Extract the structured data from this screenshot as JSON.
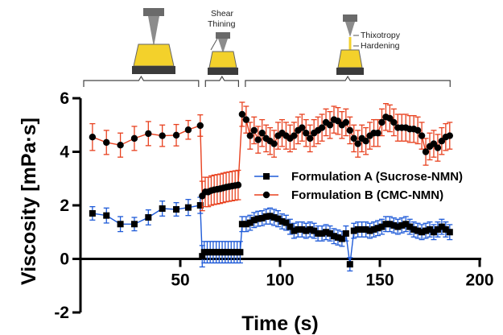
{
  "chart_data": {
    "type": "line",
    "xlabel": "Time (s)",
    "ylabel": "Viscosity [mPa·s]",
    "xlim": [
      0,
      200
    ],
    "ylim": [
      -2,
      6
    ],
    "x_ticks": [
      50,
      100,
      150,
      200
    ],
    "y_ticks": [
      -2,
      0,
      2,
      4,
      6
    ],
    "x_tick_labels": [
      "50",
      "100",
      "150",
      "200"
    ],
    "y_tick_labels": [
      "-2",
      "0",
      "2",
      "4",
      "6"
    ],
    "grid": false,
    "legend_position": "center-right",
    "phases": [
      {
        "label": "",
        "x_range": [
          0,
          60
        ]
      },
      {
        "label": "Shear Thining",
        "x_range": [
          61,
          80
        ]
      },
      {
        "label_lines": [
          "Thixotropy",
          "Hardening"
        ],
        "x_range": [
          81,
          186
        ]
      }
    ],
    "series": [
      {
        "name": "Formulation A (Sucrose-NMN)",
        "color": "#1f5bd8",
        "marker": "square",
        "points": [
          [
            6,
            1.7,
            0.25
          ],
          [
            13,
            1.62,
            0.28
          ],
          [
            20,
            1.3,
            0.28
          ],
          [
            27,
            1.3,
            0.25
          ],
          [
            34,
            1.55,
            0.28
          ],
          [
            41,
            1.88,
            0.28
          ],
          [
            48,
            1.85,
            0.25
          ],
          [
            54,
            1.92,
            0.3
          ],
          [
            60,
            2.0,
            0.3
          ],
          [
            61,
            0.1,
            0.4
          ],
          [
            62,
            0.25,
            0.4
          ],
          [
            63.5,
            0.25,
            0.4
          ],
          [
            65,
            0.25,
            0.4
          ],
          [
            66.5,
            0.25,
            0.4
          ],
          [
            68,
            0.25,
            0.4
          ],
          [
            69.5,
            0.25,
            0.4
          ],
          [
            71,
            0.25,
            0.4
          ],
          [
            72.5,
            0.25,
            0.4
          ],
          [
            74,
            0.25,
            0.4
          ],
          [
            75.5,
            0.25,
            0.4
          ],
          [
            77,
            0.25,
            0.4
          ],
          [
            78.5,
            0.25,
            0.4
          ],
          [
            80,
            0.25,
            0.4
          ],
          [
            81,
            1.3,
            0.28
          ],
          [
            83,
            1.3,
            0.28
          ],
          [
            85,
            1.35,
            0.28
          ],
          [
            87,
            1.45,
            0.28
          ],
          [
            89,
            1.5,
            0.28
          ],
          [
            91,
            1.52,
            0.28
          ],
          [
            93,
            1.58,
            0.28
          ],
          [
            95,
            1.6,
            0.3
          ],
          [
            97,
            1.55,
            0.3
          ],
          [
            99,
            1.5,
            0.3
          ],
          [
            101,
            1.4,
            0.28
          ],
          [
            103,
            1.35,
            0.28
          ],
          [
            105,
            1.2,
            0.28
          ],
          [
            107,
            1.05,
            0.28
          ],
          [
            109,
            1.1,
            0.28
          ],
          [
            111,
            1.1,
            0.28
          ],
          [
            113,
            1.05,
            0.28
          ],
          [
            115,
            1.1,
            0.28
          ],
          [
            117,
            1.05,
            0.28
          ],
          [
            119,
            0.95,
            0.28
          ],
          [
            121,
            0.95,
            0.28
          ],
          [
            123,
            1.0,
            0.28
          ],
          [
            125,
            0.95,
            0.28
          ],
          [
            127,
            0.85,
            0.28
          ],
          [
            129,
            0.8,
            0.28
          ],
          [
            131,
            0.75,
            0.28
          ],
          [
            133,
            0.95,
            0.28
          ],
          [
            135,
            -0.2,
            0.25
          ],
          [
            137,
            1.05,
            0.28
          ],
          [
            139,
            1.1,
            0.28
          ],
          [
            141,
            1.1,
            0.28
          ],
          [
            143,
            1.1,
            0.28
          ],
          [
            145,
            1.05,
            0.28
          ],
          [
            147,
            1.1,
            0.28
          ],
          [
            149,
            1.15,
            0.28
          ],
          [
            151,
            1.2,
            0.28
          ],
          [
            153,
            1.3,
            0.28
          ],
          [
            155,
            1.3,
            0.28
          ],
          [
            157,
            1.25,
            0.28
          ],
          [
            159,
            1.2,
            0.28
          ],
          [
            161,
            1.25,
            0.28
          ],
          [
            163,
            1.3,
            0.28
          ],
          [
            165,
            1.2,
            0.28
          ],
          [
            167,
            1.1,
            0.28
          ],
          [
            169,
            1.05,
            0.28
          ],
          [
            171,
            1.0,
            0.28
          ],
          [
            173,
            1.05,
            0.28
          ],
          [
            175,
            1.1,
            0.28
          ],
          [
            177,
            1.0,
            0.28
          ],
          [
            179,
            1.1,
            0.28
          ],
          [
            181,
            1.2,
            0.28
          ],
          [
            183,
            1.1,
            0.28
          ],
          [
            185,
            1.0,
            0.28
          ]
        ]
      },
      {
        "name": "Formulation B (CMC-NMN)",
        "color": "#e8411f",
        "marker": "circle",
        "points": [
          [
            6,
            4.55,
            0.5
          ],
          [
            13,
            4.35,
            0.45
          ],
          [
            20,
            4.25,
            0.45
          ],
          [
            27,
            4.5,
            0.45
          ],
          [
            34,
            4.68,
            0.45
          ],
          [
            41,
            4.6,
            0.4
          ],
          [
            48,
            4.62,
            0.4
          ],
          [
            54,
            4.82,
            0.35
          ],
          [
            60,
            4.98,
            0.4
          ],
          [
            61,
            2.35,
            0.55
          ],
          [
            62.5,
            2.5,
            0.55
          ],
          [
            64,
            2.5,
            0.55
          ],
          [
            65.5,
            2.55,
            0.55
          ],
          [
            67,
            2.58,
            0.55
          ],
          [
            68.5,
            2.6,
            0.55
          ],
          [
            70,
            2.62,
            0.55
          ],
          [
            71.5,
            2.65,
            0.55
          ],
          [
            73,
            2.68,
            0.55
          ],
          [
            74.5,
            2.7,
            0.55
          ],
          [
            76,
            2.72,
            0.55
          ],
          [
            77.5,
            2.74,
            0.55
          ],
          [
            79,
            2.76,
            0.55
          ],
          [
            81,
            5.4,
            0.45
          ],
          [
            83,
            5.2,
            0.5
          ],
          [
            85,
            4.6,
            0.5
          ],
          [
            87,
            4.8,
            0.5
          ],
          [
            89,
            4.45,
            0.5
          ],
          [
            91,
            4.7,
            0.5
          ],
          [
            93,
            4.5,
            0.5
          ],
          [
            95,
            4.4,
            0.5
          ],
          [
            97,
            4.3,
            0.5
          ],
          [
            99,
            4.6,
            0.5
          ],
          [
            101,
            4.7,
            0.5
          ],
          [
            103,
            4.6,
            0.5
          ],
          [
            105,
            4.5,
            0.5
          ],
          [
            107,
            4.6,
            0.5
          ],
          [
            109,
            4.8,
            0.5
          ],
          [
            111,
            4.9,
            0.5
          ],
          [
            113,
            4.7,
            0.5
          ],
          [
            115,
            4.5,
            0.5
          ],
          [
            117,
            4.7,
            0.5
          ],
          [
            119,
            4.8,
            0.5
          ],
          [
            121,
            4.9,
            0.5
          ],
          [
            123,
            5.1,
            0.5
          ],
          [
            125,
            5.0,
            0.5
          ],
          [
            127,
            5.2,
            0.5
          ],
          [
            129,
            5.15,
            0.5
          ],
          [
            131,
            5.0,
            0.5
          ],
          [
            133,
            5.1,
            0.5
          ],
          [
            135,
            4.8,
            0.5
          ],
          [
            137,
            4.5,
            0.5
          ],
          [
            139,
            4.3,
            0.5
          ],
          [
            141,
            4.5,
            0.5
          ],
          [
            143,
            4.4,
            0.5
          ],
          [
            145,
            4.6,
            0.5
          ],
          [
            147,
            4.7,
            0.5
          ],
          [
            149,
            4.7,
            0.5
          ],
          [
            151,
            5.1,
            0.5
          ],
          [
            153,
            5.3,
            0.5
          ],
          [
            155,
            5.25,
            0.5
          ],
          [
            157,
            5.1,
            0.5
          ],
          [
            159,
            4.9,
            0.5
          ],
          [
            161,
            4.9,
            0.5
          ],
          [
            163,
            4.9,
            0.5
          ],
          [
            165,
            4.85,
            0.5
          ],
          [
            167,
            4.85,
            0.5
          ],
          [
            169,
            4.8,
            0.5
          ],
          [
            171,
            4.6,
            0.5
          ],
          [
            173,
            4.0,
            0.5
          ],
          [
            175,
            4.2,
            0.5
          ],
          [
            177,
            4.3,
            0.5
          ],
          [
            179,
            4.15,
            0.5
          ],
          [
            181,
            4.4,
            0.5
          ],
          [
            183,
            4.55,
            0.5
          ],
          [
            185,
            4.6,
            0.5
          ]
        ]
      }
    ]
  }
}
